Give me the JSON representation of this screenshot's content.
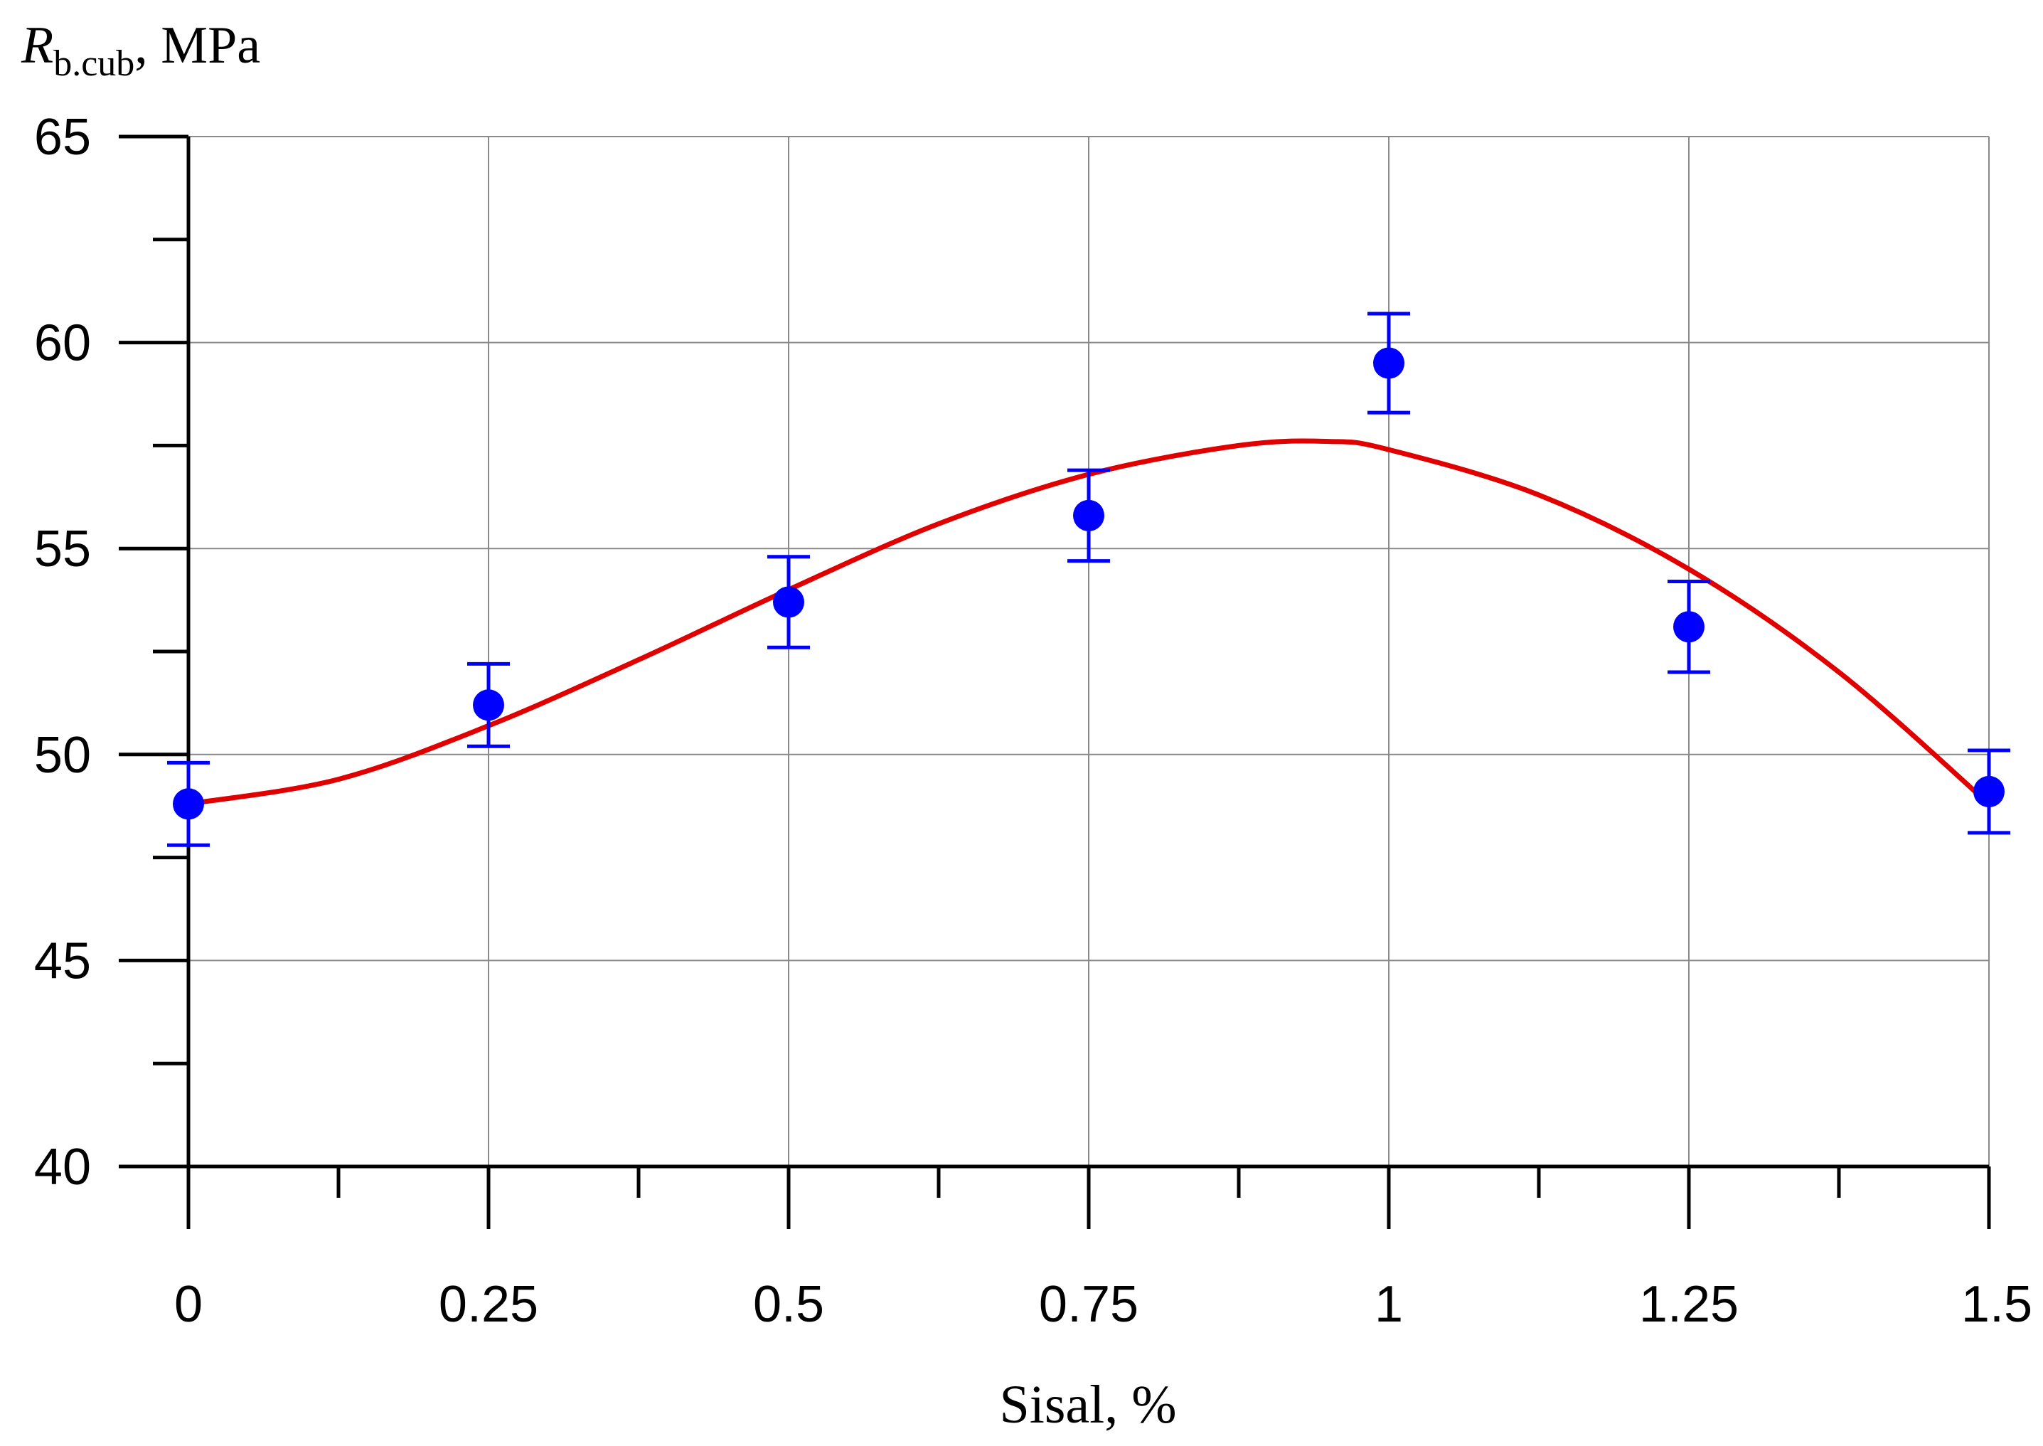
{
  "chart_data": {
    "type": "scatter",
    "xlabel": "Sisal, %",
    "ylabel": {
      "symbol": "R",
      "subscript": "b.cub",
      "unit": ", MPa"
    },
    "xlim": [
      0,
      1.5
    ],
    "ylim": [
      40,
      65
    ],
    "x_ticks": [
      0,
      0.25,
      0.5,
      0.75,
      1,
      1.25,
      1.5
    ],
    "x_tick_labels": [
      "0",
      "0.25",
      "0.5",
      "0.75",
      "1",
      "1.25",
      "1.5"
    ],
    "x_minor_ticks": [
      0.125,
      0.375,
      0.625,
      0.875,
      1.125,
      1.375
    ],
    "y_ticks": [
      40,
      45,
      50,
      55,
      60,
      65
    ],
    "y_tick_labels": [
      "40",
      "45",
      "50",
      "55",
      "60",
      "65"
    ],
    "y_minor_ticks": [
      42.5,
      47.5,
      52.5,
      57.5,
      62.5
    ],
    "grid": true,
    "series": [
      {
        "marker": "circle",
        "color": "#0000ff",
        "x": [
          0,
          0.25,
          0.5,
          0.75,
          1,
          1.25,
          1.5
        ],
        "y": [
          48.8,
          51.2,
          53.7,
          55.8,
          59.5,
          53.1,
          49.1
        ],
        "error": [
          1.0,
          1.0,
          1.1,
          1.1,
          1.2,
          1.1,
          1.0
        ]
      }
    ],
    "fit_curve": {
      "color": "#e00000",
      "x": [
        0,
        0.125,
        0.25,
        0.375,
        0.5,
        0.625,
        0.75,
        0.875,
        0.95,
        1,
        1.125,
        1.25,
        1.375,
        1.5
      ],
      "y": [
        48.8,
        49.4,
        50.7,
        52.3,
        54.0,
        55.6,
        56.8,
        57.5,
        57.6,
        57.4,
        56.3,
        54.5,
        52.0,
        48.8
      ]
    }
  }
}
